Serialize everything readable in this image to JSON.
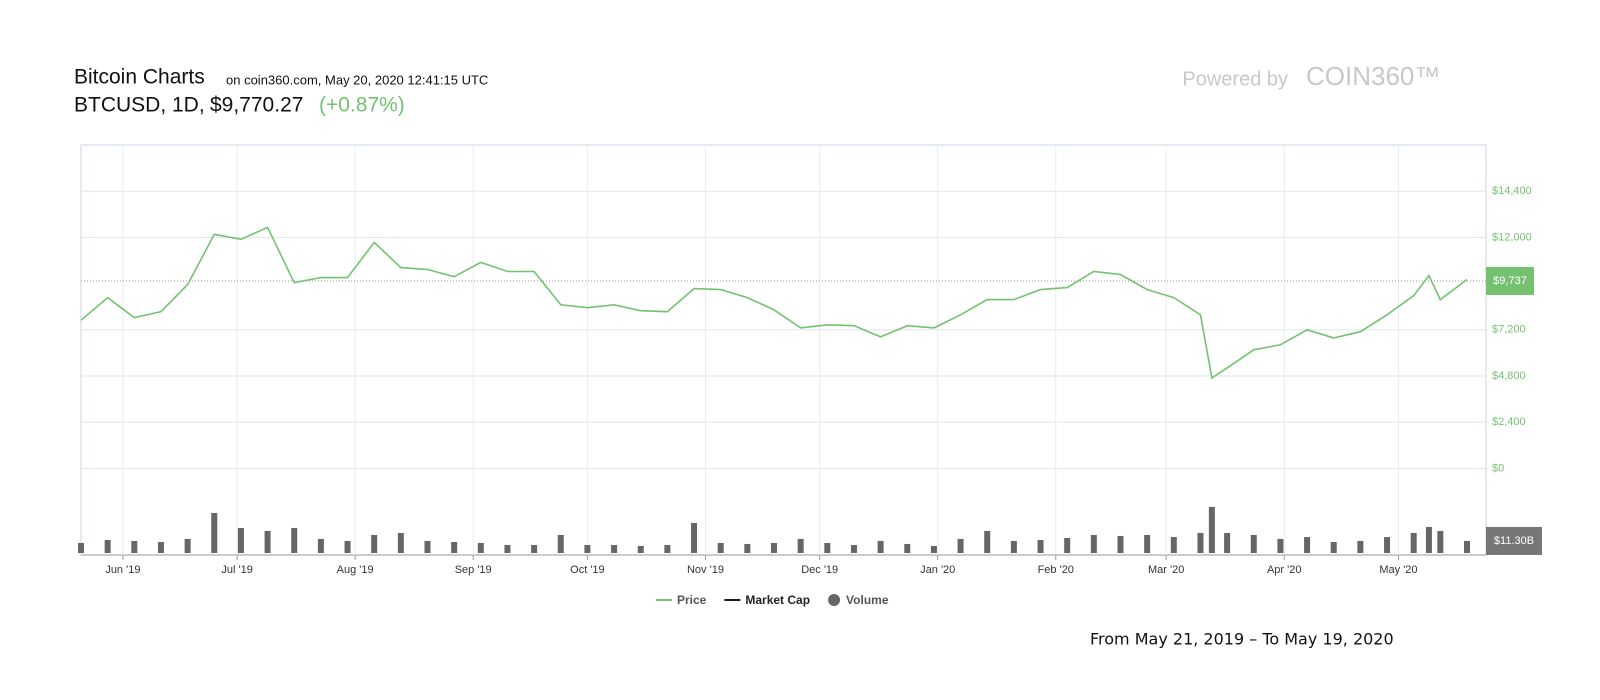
{
  "chart_data": {
    "type": "line",
    "title": "Bitcoin Charts",
    "subtitle": "on coin360.com, May 20, 2020 12:41:15 UTC",
    "symbol": "BTCUSD, 1D,",
    "price": "$9,770.27",
    "change": "(+0.87%)",
    "powered_by": "Powered by",
    "brand": "COIN360™",
    "date_range": "From May 21, 2019 – To May 19, 2020",
    "x": [
      "2019-05-21",
      "2019-05-28",
      "2019-06-04",
      "2019-06-11",
      "2019-06-18",
      "2019-06-25",
      "2019-07-02",
      "2019-07-09",
      "2019-07-16",
      "2019-07-23",
      "2019-07-30",
      "2019-08-06",
      "2019-08-13",
      "2019-08-20",
      "2019-08-27",
      "2019-09-03",
      "2019-09-10",
      "2019-09-17",
      "2019-09-24",
      "2019-10-01",
      "2019-10-08",
      "2019-10-15",
      "2019-10-22",
      "2019-10-29",
      "2019-11-05",
      "2019-11-12",
      "2019-11-19",
      "2019-11-26",
      "2019-12-03",
      "2019-12-10",
      "2019-12-17",
      "2019-12-24",
      "2019-12-31",
      "2020-01-07",
      "2020-01-14",
      "2020-01-21",
      "2020-01-28",
      "2020-02-04",
      "2020-02-11",
      "2020-02-18",
      "2020-02-25",
      "2020-03-03",
      "2020-03-10",
      "2020-03-13",
      "2020-03-17",
      "2020-03-24",
      "2020-03-31",
      "2020-04-07",
      "2020-04-14",
      "2020-04-21",
      "2020-04-28",
      "2020-05-05",
      "2020-05-09",
      "2020-05-12",
      "2020-05-19"
    ],
    "series": [
      {
        "name": "Price",
        "color": "#74c270",
        "values": [
          7700,
          8870,
          7830,
          8140,
          9550,
          12160,
          11900,
          12520,
          9650,
          9910,
          9910,
          11740,
          10430,
          10330,
          9960,
          10700,
          10230,
          10230,
          8500,
          8350,
          8500,
          8190,
          8140,
          9340,
          9290,
          8870,
          8240,
          7300,
          7460,
          7410,
          6830,
          7410,
          7300,
          7980,
          8770,
          8770,
          9290,
          9390,
          10230,
          10070,
          9290,
          8870,
          7980,
          4700,
          5220,
          6160,
          6420,
          7200,
          6780,
          7100,
          7980,
          8970,
          10020,
          8770,
          9810
        ]
      },
      {
        "name": "Volume",
        "color": "#666666",
        "axis": "volume",
        "values": [
          9.4,
          12.2,
          11.3,
          10.3,
          13.2,
          37.6,
          23.5,
          20.7,
          23.5,
          13.2,
          11.3,
          16.9,
          18.8,
          11.3,
          10.3,
          9.4,
          7.5,
          7.5,
          16.9,
          7.5,
          7.5,
          6.6,
          7.5,
          28.2,
          9.4,
          8.5,
          9.4,
          13.2,
          9.4,
          7.5,
          11.3,
          8.5,
          6.6,
          13.2,
          20.7,
          11.3,
          12.2,
          14.1,
          16.9,
          16.0,
          16.9,
          15.0,
          18.8,
          43.2,
          18.8,
          16.9,
          13.2,
          15.0,
          10.3,
          11.3,
          15.0,
          18.8,
          24.4,
          20.7,
          11.3
        ]
      }
    ],
    "inactive_series": [
      {
        "name": "Market Cap",
        "color": "#1a1a1a"
      }
    ],
    "last_price_label": {
      "value": 9737,
      "label": "$9,737"
    },
    "last_volume_label": {
      "value": 11.3,
      "label": "$11.30B"
    },
    "xlim": [
      "2019-05-21",
      "2020-05-19"
    ],
    "xticks": [
      {
        "value": "2019-06-01",
        "label": "Jun '19"
      },
      {
        "value": "2019-07-01",
        "label": "Jul '19"
      },
      {
        "value": "2019-08-01",
        "label": "Aug '19"
      },
      {
        "value": "2019-09-01",
        "label": "Sep '19"
      },
      {
        "value": "2019-10-01",
        "label": "Oct '19"
      },
      {
        "value": "2019-11-01",
        "label": "Nov '19"
      },
      {
        "value": "2019-12-01",
        "label": "Dec '19"
      },
      {
        "value": "2020-01-01",
        "label": "Jan '20"
      },
      {
        "value": "2020-02-01",
        "label": "Feb '20"
      },
      {
        "value": "2020-03-01",
        "label": "Mar '20"
      },
      {
        "value": "2020-04-01",
        "label": "Apr '20"
      },
      {
        "value": "2020-05-01",
        "label": "May '20"
      }
    ],
    "ylim": [
      -4500,
      16800
    ],
    "yticks": [
      {
        "value": 0,
        "label": "$0"
      },
      {
        "value": 2400,
        "label": "$2,400"
      },
      {
        "value": 4800,
        "label": "$4,800"
      },
      {
        "value": 7200,
        "label": "$7,200"
      },
      {
        "value": 12000,
        "label": "$12,000"
      },
      {
        "value": 14400,
        "label": "$14,400"
      }
    ],
    "grid": true
  }
}
